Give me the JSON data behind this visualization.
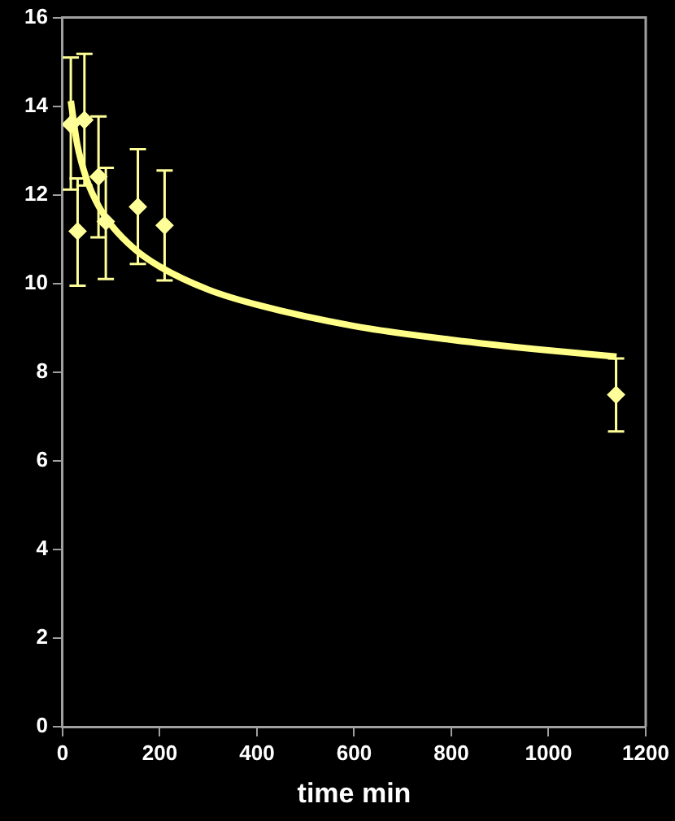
{
  "chart_data": {
    "type": "scatter",
    "xlabel": "time min",
    "x": [
      17,
      31,
      45,
      74,
      89,
      155,
      210,
      1139
    ],
    "series": [
      {
        "color": "#ffff99",
        "marker": "diamond",
        "values": [
          13.59,
          11.18,
          13.69,
          12.41,
          11.4,
          11.73,
          11.31,
          7.49
        ],
        "errors": [
          [
            12.12,
            15.1
          ],
          [
            9.95,
            12.37
          ],
          [
            12.21,
            15.18
          ],
          [
            11.04,
            13.77
          ],
          [
            10.1,
            12.61
          ],
          [
            10.44,
            13.03
          ],
          [
            10.07,
            12.55
          ],
          [
            6.66,
            8.31
          ]
        ]
      },
      {
        "type": "line",
        "marker": "none",
        "color": "#ffff88",
        "x": [
          17,
          30,
          50,
          75,
          100,
          150,
          200,
          300,
          400,
          600,
          800,
          1000,
          1140
        ],
        "values": [
          14.12,
          13.15,
          12.34,
          11.73,
          11.32,
          10.76,
          10.38,
          9.86,
          9.52,
          9.04,
          8.73,
          8.49,
          8.35
        ]
      }
    ],
    "xlim": [
      0,
      1200
    ],
    "xticks": [
      0,
      200,
      400,
      600,
      800,
      1000,
      1200
    ],
    "ylim": [
      0,
      16
    ],
    "yticks": [
      0,
      2,
      4,
      6,
      8,
      10,
      12,
      14,
      16
    ],
    "grid": false,
    "legend": false
  }
}
